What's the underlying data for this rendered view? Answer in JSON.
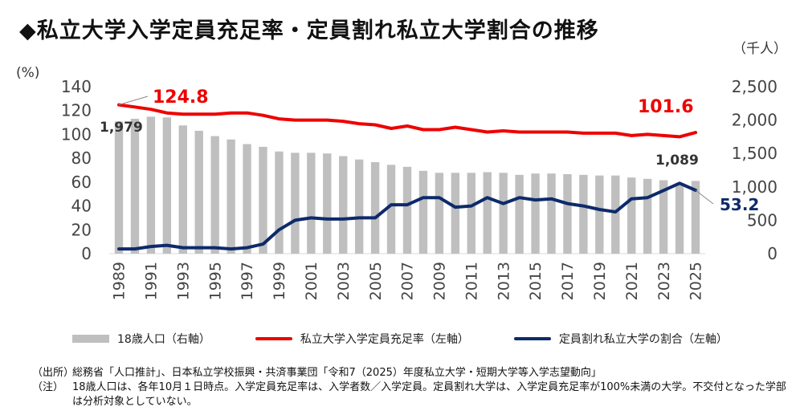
{
  "title": "◆私立大学入学定員充足率・定員割れ私立大学割合の推移",
  "chart_data": {
    "type": "bar+line",
    "title": "私立大学入学定員充足率・定員割れ私立大学割合の推移",
    "left_axis": {
      "unit": "(%)",
      "min": 0,
      "max": 140,
      "ticks": [
        "0",
        "20",
        "40",
        "60",
        "80",
        "100",
        "120",
        "140"
      ]
    },
    "right_axis": {
      "unit": "（千人）",
      "min": 0,
      "max": 2500,
      "ticks": [
        "0",
        "500",
        "1,000",
        "1,500",
        "2,000",
        "2,500"
      ]
    },
    "x": [
      1989,
      1990,
      1991,
      1992,
      1993,
      1994,
      1995,
      1996,
      1997,
      1998,
      1999,
      2000,
      2001,
      2002,
      2003,
      2004,
      2005,
      2006,
      2007,
      2008,
      2009,
      2010,
      2011,
      2012,
      2013,
      2014,
      2015,
      2016,
      2017,
      2018,
      2019,
      2020,
      2021,
      2022,
      2023,
      2024,
      2025
    ],
    "x_tick_labels": [
      "1989",
      "1991",
      "1993",
      "1995",
      "1997",
      "1999",
      "2001",
      "2003",
      "2005",
      "2007",
      "2009",
      "2011",
      "2013",
      "2015",
      "2017",
      "2019",
      "2021",
      "2023",
      "2025"
    ],
    "series": [
      {
        "name": "18歳人口（右軸）",
        "kind": "bar",
        "axis": "right",
        "color": "#bfbfbf",
        "values": [
          1979,
          2020,
          2050,
          2040,
          1920,
          1840,
          1760,
          1710,
          1640,
          1600,
          1530,
          1510,
          1510,
          1500,
          1460,
          1410,
          1370,
          1330,
          1300,
          1240,
          1210,
          1210,
          1210,
          1220,
          1210,
          1180,
          1200,
          1200,
          1190,
          1180,
          1170,
          1170,
          1140,
          1120,
          1100,
          1060,
          1089
        ]
      },
      {
        "name": "私立大学入学定員充足率（左軸）",
        "kind": "line",
        "axis": "left",
        "color": "#ee0000",
        "values": [
          124.8,
          123,
          121,
          118,
          117,
          117,
          117,
          118,
          118,
          116,
          113,
          112,
          112,
          112,
          111,
          109,
          108,
          105,
          107,
          104,
          104,
          106,
          104,
          102,
          103,
          102,
          102,
          102,
          102,
          101,
          101,
          101,
          99,
          100,
          99,
          98,
          101.6
        ]
      },
      {
        "name": "定員割れ私立大学の割合（左軸）",
        "kind": "line",
        "axis": "left",
        "color": "#0d2a6b",
        "values": [
          4,
          4,
          6,
          7,
          5,
          5,
          5,
          4,
          5,
          8,
          20,
          28,
          30,
          29,
          29,
          30,
          30,
          41,
          41,
          47,
          47,
          39,
          40,
          47,
          42,
          47,
          45,
          46,
          42,
          40,
          37,
          35,
          46,
          47,
          53,
          59,
          53.2
        ]
      }
    ],
    "annotations": {
      "bar_first": "1,979",
      "bar_last": "1,089",
      "red_first": "124.8",
      "red_last": "101.6",
      "blue_last": "53.2"
    },
    "legend_position": "bottom",
    "grid": false
  },
  "notes": [
    {
      "label": "（出所）",
      "text": "総務省「人口推計」、日本私立学校振興・共済事業団「令和7（2025）年度私立大学・短期大学等入学志望動向」"
    },
    {
      "label": "（注）",
      "text": "18歳人口は、各年10月１日時点。入学定員充足率は、入学者数／入学定員。定員割れ大学は、入学定員充足率が100%未満の大学。不交付となった学部は分析対象としていない。"
    }
  ]
}
